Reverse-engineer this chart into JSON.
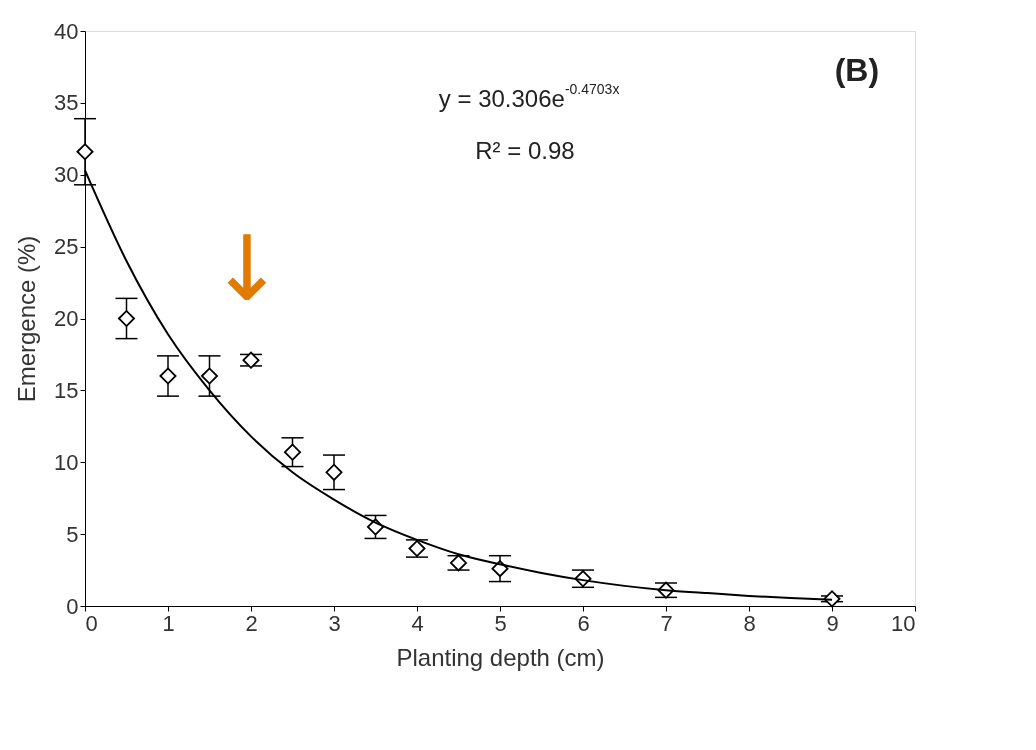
{
  "chart_data": {
    "type": "scatter",
    "xlabel": "Planting depth (cm)",
    "ylabel": "Emergence (%)",
    "xlim": [
      0,
      10
    ],
    "xticks": [
      0,
      1,
      2,
      3,
      4,
      5,
      6,
      7,
      8,
      9,
      10
    ],
    "ylim": [
      0,
      40
    ],
    "yticks": [
      0,
      5,
      10,
      15,
      20,
      25,
      30,
      35,
      40
    ],
    "grid": false,
    "series": [
      {
        "color": "#000000",
        "marker": "diamond",
        "x": [
          0,
          0.5,
          1,
          1.5,
          2,
          2.5,
          3,
          3.5,
          4,
          4.5,
          5,
          6,
          7,
          9
        ],
        "values": [
          31.6,
          20.0,
          16.0,
          16.0,
          17.1,
          10.7,
          9.3,
          5.5,
          4.0,
          3.0,
          2.6,
          1.9,
          1.1,
          0.5
        ],
        "errors": [
          2.3,
          1.4,
          1.4,
          1.4,
          0.4,
          1.0,
          1.2,
          0.8,
          0.6,
          0.5,
          0.9,
          0.6,
          0.5,
          0.2
        ]
      },
      {
        "type": "line",
        "color": "#000000",
        "x": [
          0,
          0.5,
          1,
          1.5,
          2,
          2.5,
          3,
          3.5,
          4,
          4.5,
          5,
          5.5,
          6,
          6.5,
          7,
          7.5,
          8,
          8.5,
          9
        ],
        "values": [
          30.3,
          24.0,
          18.9,
          15.0,
          11.8,
          9.3,
          7.4,
          5.8,
          4.6,
          3.6,
          2.9,
          2.3,
          1.8,
          1.4,
          1.1,
          0.9,
          0.7,
          0.55,
          0.44
        ]
      }
    ],
    "annotations": [
      "y = 30.306e$^{-0.4703x}$",
      "R² = 0.98",
      "(B)",
      "↓"
    ]
  }
}
